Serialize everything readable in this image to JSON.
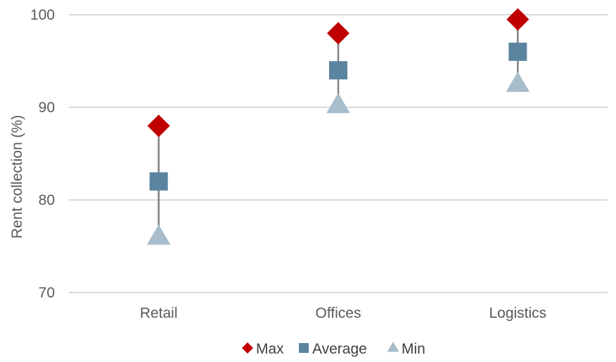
{
  "chart_data": {
    "type": "scatter",
    "title": "",
    "xlabel": "",
    "ylabel": "Rent collection (%)",
    "ylim": [
      70,
      100
    ],
    "yticks": [
      70,
      80,
      90,
      100
    ],
    "grid": true,
    "legend_position": "bottom",
    "categories": [
      "Retail",
      "Offices",
      "Logistics"
    ],
    "series": [
      {
        "name": "Max",
        "marker": "diamond",
        "color": "#C00000",
        "values": [
          88,
          98,
          99.5
        ]
      },
      {
        "name": "Average",
        "marker": "square",
        "color": "#5B84A0",
        "values": [
          82,
          94,
          96
        ]
      },
      {
        "name": "Min",
        "marker": "triangle",
        "color": "#A7BDCB",
        "values": [
          76,
          90.2,
          92.5
        ]
      }
    ],
    "range_line_color": "#808080",
    "gridline_color": "#D9D9D9"
  }
}
